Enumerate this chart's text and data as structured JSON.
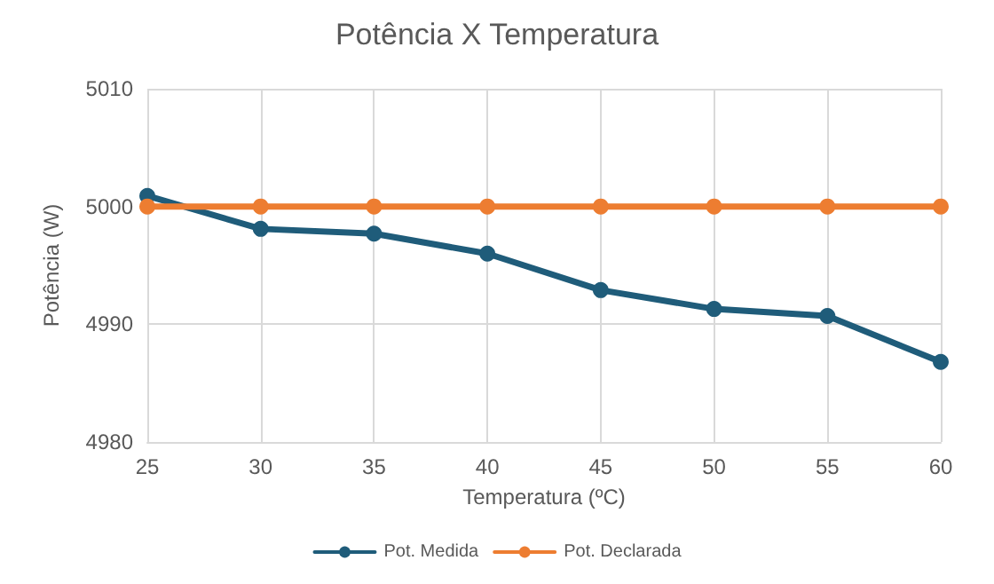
{
  "chart_data": {
    "type": "line",
    "title": "Potência X Temperatura",
    "xlabel": "Temperatura (ºC)",
    "ylabel": "Potência (W)",
    "x": [
      25,
      30,
      35,
      40,
      45,
      50,
      55,
      60
    ],
    "series": [
      {
        "name": "Pot. Medida",
        "color": "#1f5c7a",
        "values": [
          5000.9,
          4998.1,
          4997.7,
          4996.0,
          4992.9,
          4991.3,
          4990.7,
          4986.8
        ]
      },
      {
        "name": "Pot. Declarada",
        "color": "#ed7d31",
        "values": [
          5000,
          5000,
          5000,
          5000,
          5000,
          5000,
          5000,
          5000
        ]
      }
    ],
    "xlim": [
      25,
      60
    ],
    "xticks": [
      25,
      30,
      35,
      40,
      45,
      50,
      55,
      60
    ],
    "ylim": [
      4980,
      5010
    ],
    "yticks": [
      4980,
      4990,
      5000,
      5010
    ],
    "grid": true,
    "legend": "bottom",
    "marker": "circle",
    "line_style": "solid"
  }
}
